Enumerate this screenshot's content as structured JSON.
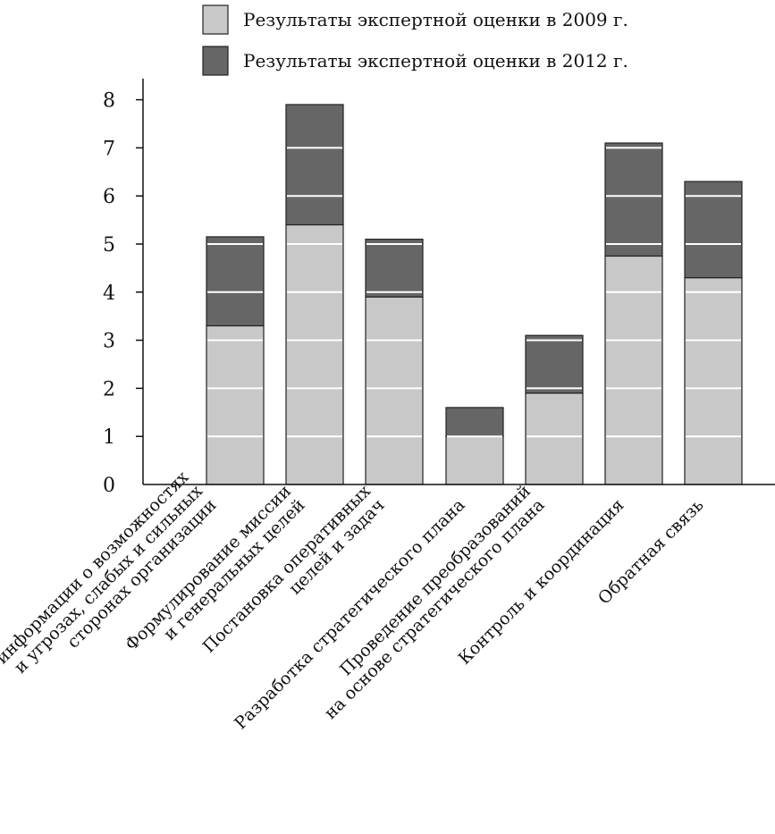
{
  "chart_data": {
    "type": "bar",
    "stacked": true,
    "title": "",
    "xlabel": "",
    "ylabel": "",
    "ylim": [
      0,
      8
    ],
    "yticks": [
      0,
      1,
      2,
      3,
      4,
      5,
      6,
      7,
      8
    ],
    "grid": "horizontal white lines drawn over bars",
    "legend_position": "top",
    "categories": [
      [
        "Анализ информации о возможностях",
        "и угрозах, слабых и сильных",
        "сторонах организации"
      ],
      [
        "Формулирование миссии",
        "и генеральных целей"
      ],
      [
        "Постановка оперативных",
        "целей и задач"
      ],
      [
        "Разработка стратегического плана"
      ],
      [
        "Проведение преобразований",
        "на основе стратегического плана"
      ],
      [
        "Контроль и координация"
      ],
      [
        "Обратная связь"
      ]
    ],
    "series": [
      {
        "name": "Результаты экспертной оценки в 2009 г.",
        "color": "#c8c8c8",
        "values": [
          3.3,
          5.4,
          3.9,
          1.0,
          1.9,
          4.75,
          4.3
        ]
      },
      {
        "name": "Результаты экспертной оценки в 2012 г.",
        "color": "#666666",
        "values": [
          1.85,
          2.5,
          1.2,
          0.6,
          1.2,
          2.35,
          2.0
        ]
      }
    ]
  }
}
